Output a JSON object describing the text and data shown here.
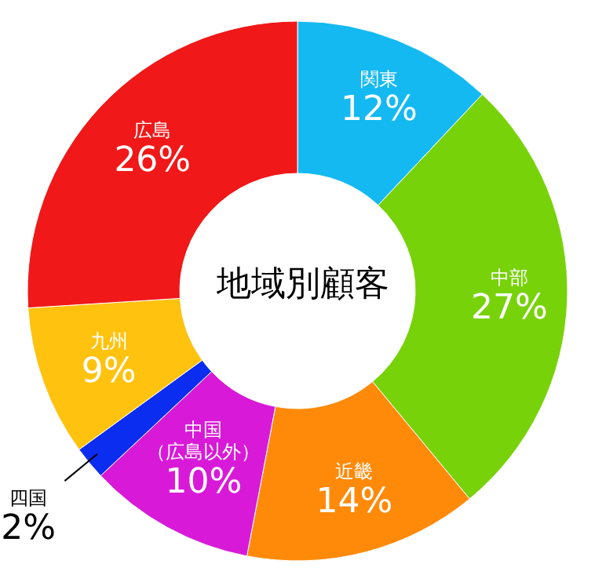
{
  "chart_data": {
    "type": "donut",
    "title": "地域別顧客",
    "categories": [
      "関東",
      "中部",
      "近畿",
      "中国（広島以外）",
      "四国",
      "九州",
      "広島"
    ],
    "values": [
      12,
      27,
      14,
      10,
      2,
      9,
      26
    ],
    "value_labels": [
      "12%",
      "27%",
      "14%",
      "10%",
      "2%",
      "9%",
      "26%"
    ],
    "colors": [
      "#14b9f2",
      "#78d20a",
      "#ff8a0a",
      "#d81ad8",
      "#0a2df0",
      "#ffc20f",
      "#f01818"
    ]
  }
}
